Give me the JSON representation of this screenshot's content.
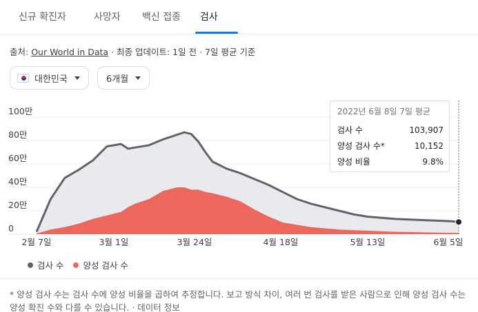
{
  "tabs": [
    {
      "label": "신규 확진자"
    },
    {
      "label": "사망자"
    },
    {
      "label": "백신 접종"
    },
    {
      "label": "검사"
    }
  ],
  "source": {
    "prefix": "출처:",
    "link": "Our World in Data",
    "suffix": "· 최종 업데이트: 1일 전 · 7일 평균 기준"
  },
  "filters": {
    "country": "대한민국",
    "period": "6개월"
  },
  "tooltip": {
    "title": "2022년 6월 8일 7일 평균",
    "rows": [
      {
        "label": "검사 수",
        "value": "103,907"
      },
      {
        "label": "양성 검사 수*",
        "value": "10,152"
      },
      {
        "label": "양성 비율",
        "value": "9.8%"
      }
    ]
  },
  "legend": {
    "tests": "검사 수",
    "positive": "양성 검사 수"
  },
  "colors": {
    "tests_line": "#5f6368",
    "tests_fill": "#e8eaed",
    "positive_fill": "#ee675c",
    "accent": "#1a73e8"
  },
  "footnote": {
    "text": "* 양성 검사 수는 검사 수에 양성 비율을 곱하여 추정합니다. 보고 방식 차이, 여러 번 검사를 받은 사람으로 인해 양성 검사 수는 양성 확진 수와 다를 수 있습니다.",
    "link": "데이터 정보"
  },
  "chart_data": {
    "type": "area",
    "title": "",
    "xlabel": "",
    "ylabel": "",
    "ylim": [
      0,
      1000000
    ],
    "x_ticks": [
      "2월 7일",
      "3월 1일",
      "3월 24일",
      "4월 18일",
      "5월 13일",
      "6월 5일"
    ],
    "y_ticks": [
      "0",
      "20만",
      "40만",
      "60만",
      "80만",
      "100만"
    ],
    "grid": true,
    "x": [
      0,
      4,
      8,
      12,
      16,
      20,
      24,
      26,
      28,
      32,
      36,
      40,
      42,
      44,
      46,
      48,
      50,
      54,
      58,
      62,
      66,
      70,
      74,
      78,
      82,
      86,
      90,
      94,
      98,
      102,
      106,
      110,
      114,
      118,
      120
    ],
    "series": [
      {
        "name": "검사 수",
        "values": [
          20000,
          300000,
          480000,
          550000,
          630000,
          750000,
          770000,
          730000,
          740000,
          760000,
          810000,
          850000,
          870000,
          855000,
          790000,
          700000,
          620000,
          560000,
          520000,
          470000,
          420000,
          360000,
          300000,
          260000,
          230000,
          200000,
          170000,
          150000,
          140000,
          130000,
          125000,
          120000,
          115000,
          110000,
          103907
        ]
      },
      {
        "name": "양성 검사 수",
        "values": [
          5000,
          40000,
          60000,
          90000,
          130000,
          160000,
          190000,
          230000,
          260000,
          300000,
          370000,
          400000,
          400000,
          380000,
          380000,
          360000,
          350000,
          320000,
          280000,
          210000,
          150000,
          100000,
          80000,
          60000,
          50000,
          40000,
          35000,
          30000,
          25000,
          20000,
          18000,
          15000,
          13000,
          11000,
          10152
        ]
      }
    ],
    "highlight_index": 34
  }
}
